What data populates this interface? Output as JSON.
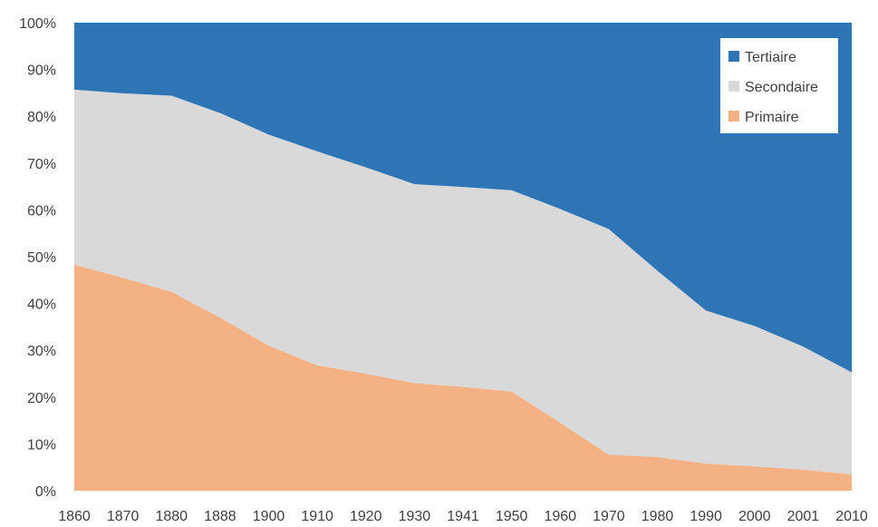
{
  "chart_data": {
    "type": "area",
    "stacked": true,
    "x": [
      "1860",
      "1870",
      "1880",
      "1888",
      "1900",
      "1910",
      "1920",
      "1930",
      "1941",
      "1950",
      "1960",
      "1970",
      "1980",
      "1990",
      "2000",
      "2001",
      "2010"
    ],
    "series": [
      {
        "name": "Primaire",
        "color": "#F4B183",
        "values": [
          48.3,
          45.5,
          42.5,
          37.0,
          31.0,
          26.8,
          25.0,
          23.0,
          22.2,
          21.2,
          14.5,
          7.7,
          7.2,
          5.8,
          5.2,
          4.5,
          3.5
        ]
      },
      {
        "name": "Secondaire",
        "color": "#D9D9D9",
        "values": [
          37.4,
          39.4,
          41.9,
          43.7,
          45.1,
          45.7,
          44.1,
          42.5,
          42.7,
          43.0,
          45.7,
          48.2,
          39.8,
          32.7,
          30.0,
          26.3,
          21.8
        ]
      },
      {
        "name": "Tertiaire",
        "color": "#2E75B6",
        "values": [
          14.3,
          15.1,
          15.6,
          19.3,
          23.9,
          27.5,
          30.9,
          34.5,
          35.1,
          35.8,
          39.8,
          44.1,
          53.0,
          61.5,
          64.8,
          69.2,
          74.7
        ]
      }
    ],
    "y_ticks": [
      "0%",
      "10%",
      "20%",
      "30%",
      "40%",
      "50%",
      "60%",
      "70%",
      "80%",
      "90%",
      "100%"
    ],
    "ylim": [
      0,
      100
    ],
    "grid": false,
    "legend": {
      "placement": "top-right",
      "entries": [
        "Tertiaire",
        "Secondaire",
        "Primaire"
      ]
    },
    "title": "",
    "xlabel": "",
    "ylabel": ""
  }
}
